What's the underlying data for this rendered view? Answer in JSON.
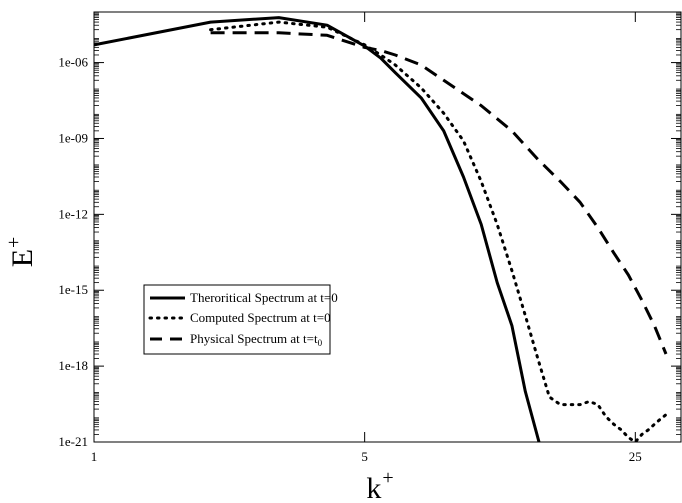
{
  "chart_data": {
    "type": "line",
    "title": "",
    "xlabel": "k",
    "xlabel_sup": "+",
    "ylabel": "E",
    "ylabel_sup": "+",
    "x_scale": "log",
    "y_scale": "log",
    "xlim": [
      1,
      33
    ],
    "ylim": [
      1e-21,
      0.0001
    ],
    "x_ticks": [
      1,
      5,
      25
    ],
    "x_tick_labels": [
      "1",
      "5",
      "25"
    ],
    "y_ticks": [
      1e-06,
      1e-09,
      1e-12,
      1e-15,
      1e-18,
      1e-21
    ],
    "y_tick_labels": [
      "1e-06",
      "1e-09",
      "1e-12",
      "1e-15",
      "1e-18",
      "1e-21"
    ],
    "grid": false,
    "legend_position": "lower-left",
    "series": [
      {
        "name": "Theroritical Spectrum at t=0",
        "style": "solid",
        "x": [
          1,
          2,
          3,
          4,
          5,
          5.5,
          6,
          7,
          8,
          9,
          10,
          11,
          12,
          13,
          14.1
        ],
        "y": [
          5e-06,
          4e-05,
          6e-05,
          3e-05,
          4.5e-06,
          1.5e-06,
          4e-07,
          4e-08,
          2e-09,
          3e-11,
          4e-13,
          2e-15,
          4e-17,
          1e-19,
          1e-21
        ]
      },
      {
        "name": "Computed Spectrum at t=0",
        "style": "dotted",
        "x": [
          2,
          3,
          4,
          5,
          5.5,
          6,
          7,
          8,
          9,
          10,
          11,
          12,
          13,
          14,
          15,
          16,
          17,
          18,
          19,
          20,
          21,
          22,
          23,
          24,
          25,
          26,
          27,
          28,
          29,
          30
        ],
        "y": [
          2e-05,
          4e-05,
          2.5e-05,
          5e-06,
          2e-06,
          8e-07,
          1e-07,
          1e-08,
          8e-10,
          2e-11,
          4e-13,
          6e-15,
          1e-16,
          2e-18,
          6e-20,
          3e-20,
          3e-20,
          3e-20,
          4e-20,
          3e-20,
          1e-20,
          5e-21,
          3e-21,
          1.5e-21,
          1e-21,
          2e-21,
          3e-21,
          5e-21,
          8e-21,
          1.2e-20
        ]
      },
      {
        "name": "Physical Spectrum at t=t",
        "name_sub": "0",
        "style": "dashed",
        "x": [
          2,
          3,
          4,
          5,
          5.5,
          6,
          7,
          8,
          10,
          12,
          14,
          16,
          18,
          20,
          22,
          24,
          26,
          28,
          30
        ],
        "y": [
          1.5e-05,
          1.5e-05,
          1.2e-05,
          4e-06,
          3e-06,
          2e-06,
          8e-07,
          2e-07,
          2e-08,
          2e-09,
          1.5e-10,
          2e-11,
          3e-12,
          3e-13,
          3e-14,
          4e-15,
          4e-16,
          4e-17,
          3e-18
        ]
      }
    ]
  }
}
